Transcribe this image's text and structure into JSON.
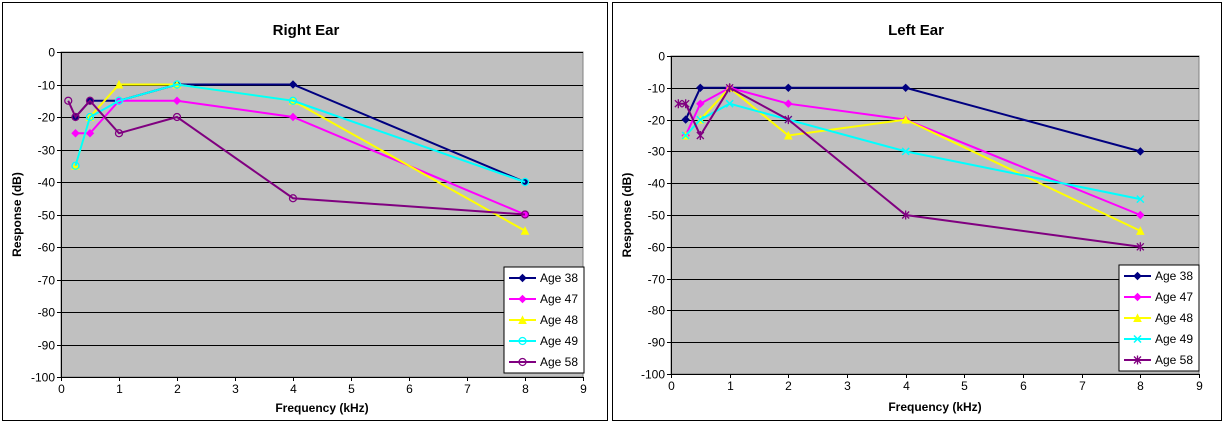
{
  "chart_data": [
    {
      "type": "line",
      "title": "Right Ear",
      "xlabel": "Frequency (kHz)",
      "ylabel": "Response (dB)",
      "xlim": [
        0,
        9
      ],
      "ylim": [
        -100,
        0
      ],
      "xticks": [
        "0",
        "1",
        "2",
        "3",
        "4",
        "5",
        "6",
        "7",
        "8",
        "9"
      ],
      "yticks": [
        "0",
        "-10",
        "-20",
        "-30",
        "-40",
        "-50",
        "-60",
        "-70",
        "-80",
        "-90",
        "-100"
      ],
      "grid": true,
      "plot_background": "#C0C0C0",
      "legend_position": "bottom-right",
      "series": [
        {
          "name": "Age 38",
          "color": "#000080",
          "marker": "diamond",
          "x": [
            0.25,
            0.5,
            1,
            2,
            4,
            8
          ],
          "y": [
            -20,
            -15,
            -15,
            -10,
            -10,
            -40
          ]
        },
        {
          "name": "Age 47",
          "color": "#FF00FF",
          "marker": "diamond",
          "x": [
            0.25,
            0.5,
            1,
            2,
            4,
            8
          ],
          "y": [
            -25,
            -25,
            -15,
            -15,
            -20,
            -50
          ]
        },
        {
          "name": "Age 48",
          "color": "#FFFF00",
          "marker": "triangle",
          "x": [
            0.25,
            0.5,
            1,
            2,
            4,
            8
          ],
          "y": [
            -35,
            -20,
            -10,
            -10,
            -15,
            -55
          ]
        },
        {
          "name": "Age 49",
          "color": "#00FFFF",
          "marker": "circle",
          "x": [
            0.25,
            0.5,
            1,
            2,
            4,
            8
          ],
          "y": [
            -35,
            -20,
            -15,
            -10,
            -15,
            -40
          ]
        },
        {
          "name": "Age 58",
          "color": "#800080",
          "marker": "circle",
          "x": [
            0.125,
            0.25,
            0.5,
            1,
            2,
            4,
            8
          ],
          "y": [
            -15,
            -20,
            -15,
            -25,
            -20,
            -45,
            -50
          ]
        }
      ]
    },
    {
      "type": "line",
      "title": "Left Ear",
      "xlabel": "Frequency (kHz)",
      "ylabel": "Response (dB)",
      "xlim": [
        0,
        9
      ],
      "ylim": [
        -100,
        0
      ],
      "xticks": [
        "0",
        "1",
        "2",
        "3",
        "4",
        "5",
        "6",
        "7",
        "8",
        "9"
      ],
      "yticks": [
        "0",
        "-10",
        "-20",
        "-30",
        "-40",
        "-50",
        "-60",
        "-70",
        "-80",
        "-90",
        "-100"
      ],
      "grid": true,
      "plot_background": "#C0C0C0",
      "legend_position": "bottom-right",
      "series": [
        {
          "name": "Age 38",
          "color": "#000080",
          "marker": "diamond",
          "x": [
            0.25,
            0.5,
            1,
            2,
            4,
            8
          ],
          "y": [
            -20,
            -10,
            -10,
            -10,
            -10,
            -30
          ]
        },
        {
          "name": "Age 47",
          "color": "#FF00FF",
          "marker": "diamond",
          "x": [
            0.25,
            0.5,
            1,
            2,
            4,
            8
          ],
          "y": [
            -25,
            -15,
            -10,
            -15,
            -20,
            -50
          ]
        },
        {
          "name": "Age 48",
          "color": "#FFFF00",
          "marker": "triangle",
          "x": [
            0.25,
            0.5,
            1,
            2,
            4,
            8
          ],
          "y": [
            -25,
            -20,
            -10,
            -25,
            -20,
            -55
          ]
        },
        {
          "name": "Age 49",
          "color": "#00FFFF",
          "marker": "x",
          "x": [
            0.25,
            0.5,
            1,
            2,
            4,
            8
          ],
          "y": [
            -25,
            -20,
            -15,
            -20,
            -30,
            -45
          ]
        },
        {
          "name": "Age 58",
          "color": "#800080",
          "marker": "star",
          "x": [
            0.125,
            0.25,
            0.5,
            1,
            2,
            4,
            8
          ],
          "y": [
            -15,
            -15,
            -25,
            -10,
            -20,
            -50,
            -60
          ]
        }
      ]
    }
  ]
}
